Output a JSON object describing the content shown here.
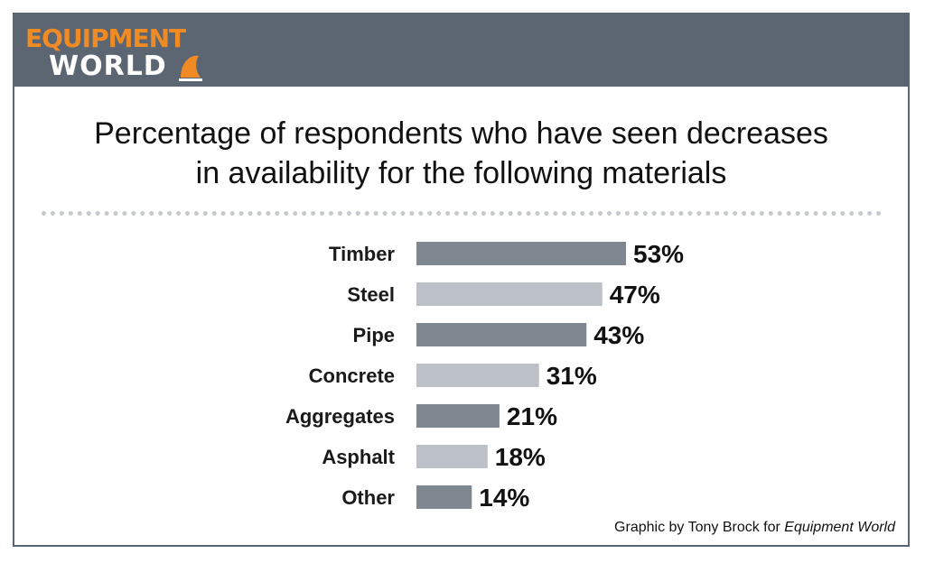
{
  "brand": {
    "line1": "EQUIPMENT",
    "line2": "WORLD",
    "accent": "#f08a24",
    "header_bg": "#5b6672"
  },
  "title_lines": [
    "Percentage of respondents who have seen decreases",
    "in  availability for the following materials"
  ],
  "credit": {
    "prefix": "Graphic by Tony Brock for ",
    "publication": "Equipment World"
  },
  "colors": {
    "dark_bar": "#7f8891",
    "light_bar": "#bcc1c7",
    "text": "#111111"
  },
  "chart_data": {
    "type": "bar",
    "orientation": "horizontal",
    "categories": [
      "Timber",
      "Steel",
      "Pipe",
      "Concrete",
      "Aggregates",
      "Asphalt",
      "Other"
    ],
    "values": [
      53,
      47,
      43,
      31,
      21,
      18,
      14
    ],
    "value_labels": [
      "53%",
      "47%",
      "43%",
      "31%",
      "21%",
      "18%",
      "14%"
    ],
    "bar_colors": [
      "#7f8891",
      "#bcc1c7",
      "#7f8891",
      "#bcc1c7",
      "#7f8891",
      "#bcc1c7",
      "#7f8891"
    ],
    "title": "Percentage of respondents who have seen decreases in  availability for the following materials",
    "xlabel": "",
    "ylabel": "",
    "xlim": [
      0,
      53
    ],
    "grid": false,
    "legend": "none"
  }
}
